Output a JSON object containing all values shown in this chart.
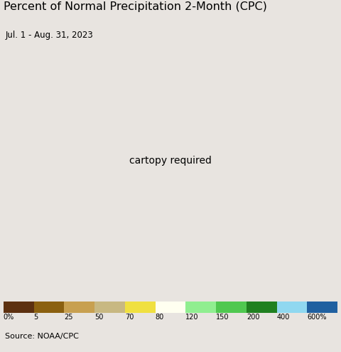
{
  "title": "Percent of Normal Precipitation 2-Month (CPC)",
  "subtitle": "Jul. 1 - Aug. 31, 2023",
  "source": "Source: NOAA/CPC",
  "colorbar_values": [
    0,
    5,
    25,
    50,
    70,
    80,
    120,
    150,
    200,
    400,
    600
  ],
  "colorbar_labels": [
    "0%",
    "5",
    "25",
    "50",
    "70",
    "80",
    "120",
    "150",
    "200",
    "400",
    "600%"
  ],
  "colorbar_colors": [
    "#5C3010",
    "#8B6010",
    "#C8A050",
    "#C8B882",
    "#F0E040",
    "#FFFFF0",
    "#90EE90",
    "#50C850",
    "#208020",
    "#90D8F0",
    "#2060A0"
  ],
  "bg_color": "#E8E4E0",
  "land_color": "#D8D4D0",
  "ocean_color": "#C8EEF8",
  "border_color": "#000000",
  "title_fontsize": 11.5,
  "subtitle_fontsize": 8.5,
  "source_fontsize": 8,
  "extent": [
    22.0,
    41.5,
    43.5,
    54.5
  ]
}
